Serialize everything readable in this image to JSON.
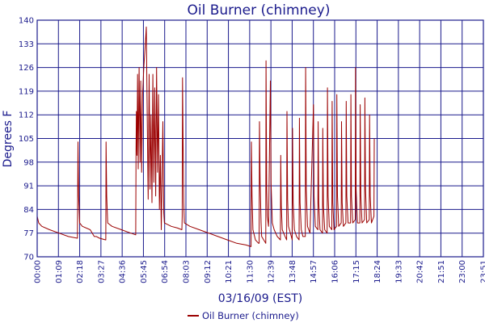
{
  "chart_data": {
    "type": "line",
    "title": "Oil Burner (chimney)",
    "xlabel": "03/16/09 (EST)",
    "ylabel": "Degrees F",
    "x_ticks": [
      "00:00",
      "01:09",
      "02:18",
      "03:27",
      "04:36",
      "05:45",
      "06:54",
      "08:03",
      "09:12",
      "10:21",
      "11:30",
      "12:39",
      "13:48",
      "14:57",
      "16:06",
      "17:15",
      "18:24",
      "19:33",
      "20:42",
      "21:51",
      "23:00",
      "23:51"
    ],
    "y_ticks": [
      70,
      77,
      84,
      91,
      98,
      105,
      112,
      119,
      126,
      133,
      140
    ],
    "ylim": [
      70,
      140
    ],
    "x_unit": "minutes since 00:00",
    "xlim": [
      0,
      1431
    ],
    "grid": true,
    "legend_position": "bottom-center",
    "colors": {
      "series": "#9b0000",
      "grid": "#1a1a8c",
      "text": "#1a1a8c"
    },
    "series": [
      {
        "name": "Oil Burner (chimney)",
        "points": [
          [
            0,
            82
          ],
          [
            5,
            80
          ],
          [
            15,
            79
          ],
          [
            40,
            78
          ],
          [
            70,
            77
          ],
          [
            100,
            76
          ],
          [
            129,
            75.5
          ],
          [
            131,
            104
          ],
          [
            133,
            88
          ],
          [
            136,
            80
          ],
          [
            145,
            79
          ],
          [
            170,
            78
          ],
          [
            183,
            76
          ],
          [
            190,
            76
          ],
          [
            200,
            75.5
          ],
          [
            220,
            75
          ],
          [
            221,
            104
          ],
          [
            223,
            88
          ],
          [
            226,
            80
          ],
          [
            240,
            79
          ],
          [
            270,
            78
          ],
          [
            300,
            77
          ],
          [
            316,
            76.5
          ],
          [
            317,
            102
          ],
          [
            318,
            113
          ],
          [
            320,
            100
          ],
          [
            322,
            124
          ],
          [
            324,
            96
          ],
          [
            327,
            126
          ],
          [
            330,
            98
          ],
          [
            332,
            122
          ],
          [
            335,
            95
          ],
          [
            338,
            118
          ],
          [
            342,
            126
          ],
          [
            346,
            132
          ],
          [
            350,
            138
          ],
          [
            353,
            110
          ],
          [
            356,
            87
          ],
          [
            359,
            124
          ],
          [
            362,
            90
          ],
          [
            365,
            112
          ],
          [
            368,
            86
          ],
          [
            371,
            124
          ],
          [
            374,
            92
          ],
          [
            377,
            120
          ],
          [
            380,
            88
          ],
          [
            383,
            126
          ],
          [
            386,
            95
          ],
          [
            389,
            118
          ],
          [
            392,
            84
          ],
          [
            395,
            100
          ],
          [
            398,
            78
          ],
          [
            400,
            90
          ],
          [
            403,
            110
          ],
          [
            406,
            83
          ],
          [
            408,
            80
          ],
          [
            430,
            79
          ],
          [
            450,
            78.5
          ],
          [
            464,
            78
          ],
          [
            465,
            82
          ],
          [
            466,
            123
          ],
          [
            468,
            104
          ],
          [
            470,
            86
          ],
          [
            472,
            80
          ],
          [
            490,
            79
          ],
          [
            520,
            78
          ],
          [
            550,
            77
          ],
          [
            580,
            76
          ],
          [
            610,
            75
          ],
          [
            640,
            74
          ],
          [
            670,
            73.5
          ],
          [
            686,
            73
          ],
          [
            687,
            104
          ],
          [
            689,
            88
          ],
          [
            692,
            78
          ],
          [
            700,
            75
          ],
          [
            710,
            74
          ],
          [
            712,
            74
          ],
          [
            713,
            110
          ],
          [
            715,
            92
          ],
          [
            718,
            80
          ],
          [
            720,
            76
          ],
          [
            733,
            74
          ],
          [
            734,
            128
          ],
          [
            736,
            90
          ],
          [
            738,
            82
          ],
          [
            742,
            79
          ],
          [
            748,
            122
          ],
          [
            750,
            92
          ],
          [
            754,
            80
          ],
          [
            760,
            78
          ],
          [
            770,
            76
          ],
          [
            780,
            75
          ],
          [
            781,
            100
          ],
          [
            783,
            85
          ],
          [
            786,
            78
          ],
          [
            795,
            76
          ],
          [
            800,
            75
          ],
          [
            801,
            113
          ],
          [
            803,
            87
          ],
          [
            806,
            79
          ],
          [
            815,
            76
          ],
          [
            818,
            75
          ],
          [
            819,
            108
          ],
          [
            821,
            86
          ],
          [
            825,
            78
          ],
          [
            832,
            76
          ],
          [
            840,
            75
          ],
          [
            841,
            111
          ],
          [
            843,
            86
          ],
          [
            847,
            78
          ],
          [
            852,
            76
          ],
          [
            860,
            76
          ],
          [
            861,
            126
          ],
          [
            863,
            90
          ],
          [
            867,
            79
          ],
          [
            875,
            77
          ],
          [
            886,
            115
          ],
          [
            888,
            88
          ],
          [
            892,
            79
          ],
          [
            900,
            78
          ],
          [
            901,
            110
          ],
          [
            903,
            86
          ],
          [
            907,
            78
          ],
          [
            915,
            77
          ],
          [
            916,
            108
          ],
          [
            918,
            85
          ],
          [
            922,
            78
          ],
          [
            930,
            77
          ],
          [
            931,
            120
          ],
          [
            933,
            88
          ],
          [
            937,
            79
          ],
          [
            945,
            78
          ],
          [
            946,
            116
          ],
          [
            948,
            86
          ],
          [
            952,
            78
          ],
          [
            960,
            79
          ],
          [
            961,
            118
          ],
          [
            963,
            88
          ],
          [
            967,
            79
          ],
          [
            975,
            80
          ],
          [
            976,
            110
          ],
          [
            978,
            86
          ],
          [
            982,
            79
          ],
          [
            990,
            80
          ],
          [
            991,
            116
          ],
          [
            993,
            88
          ],
          [
            997,
            80
          ],
          [
            1005,
            80
          ],
          [
            1006,
            118
          ],
          [
            1008,
            88
          ],
          [
            1012,
            80
          ],
          [
            1020,
            81
          ],
          [
            1021,
            126
          ],
          [
            1023,
            90
          ],
          [
            1027,
            80
          ],
          [
            1035,
            80
          ],
          [
            1036,
            115
          ],
          [
            1038,
            88
          ],
          [
            1042,
            80
          ],
          [
            1050,
            81
          ],
          [
            1051,
            117
          ],
          [
            1053,
            90
          ],
          [
            1057,
            80
          ],
          [
            1065,
            81
          ],
          [
            1066,
            112
          ],
          [
            1068,
            88
          ],
          [
            1072,
            80
          ],
          [
            1080,
            82
          ],
          [
            1081,
            105
          ]
        ]
      }
    ]
  }
}
